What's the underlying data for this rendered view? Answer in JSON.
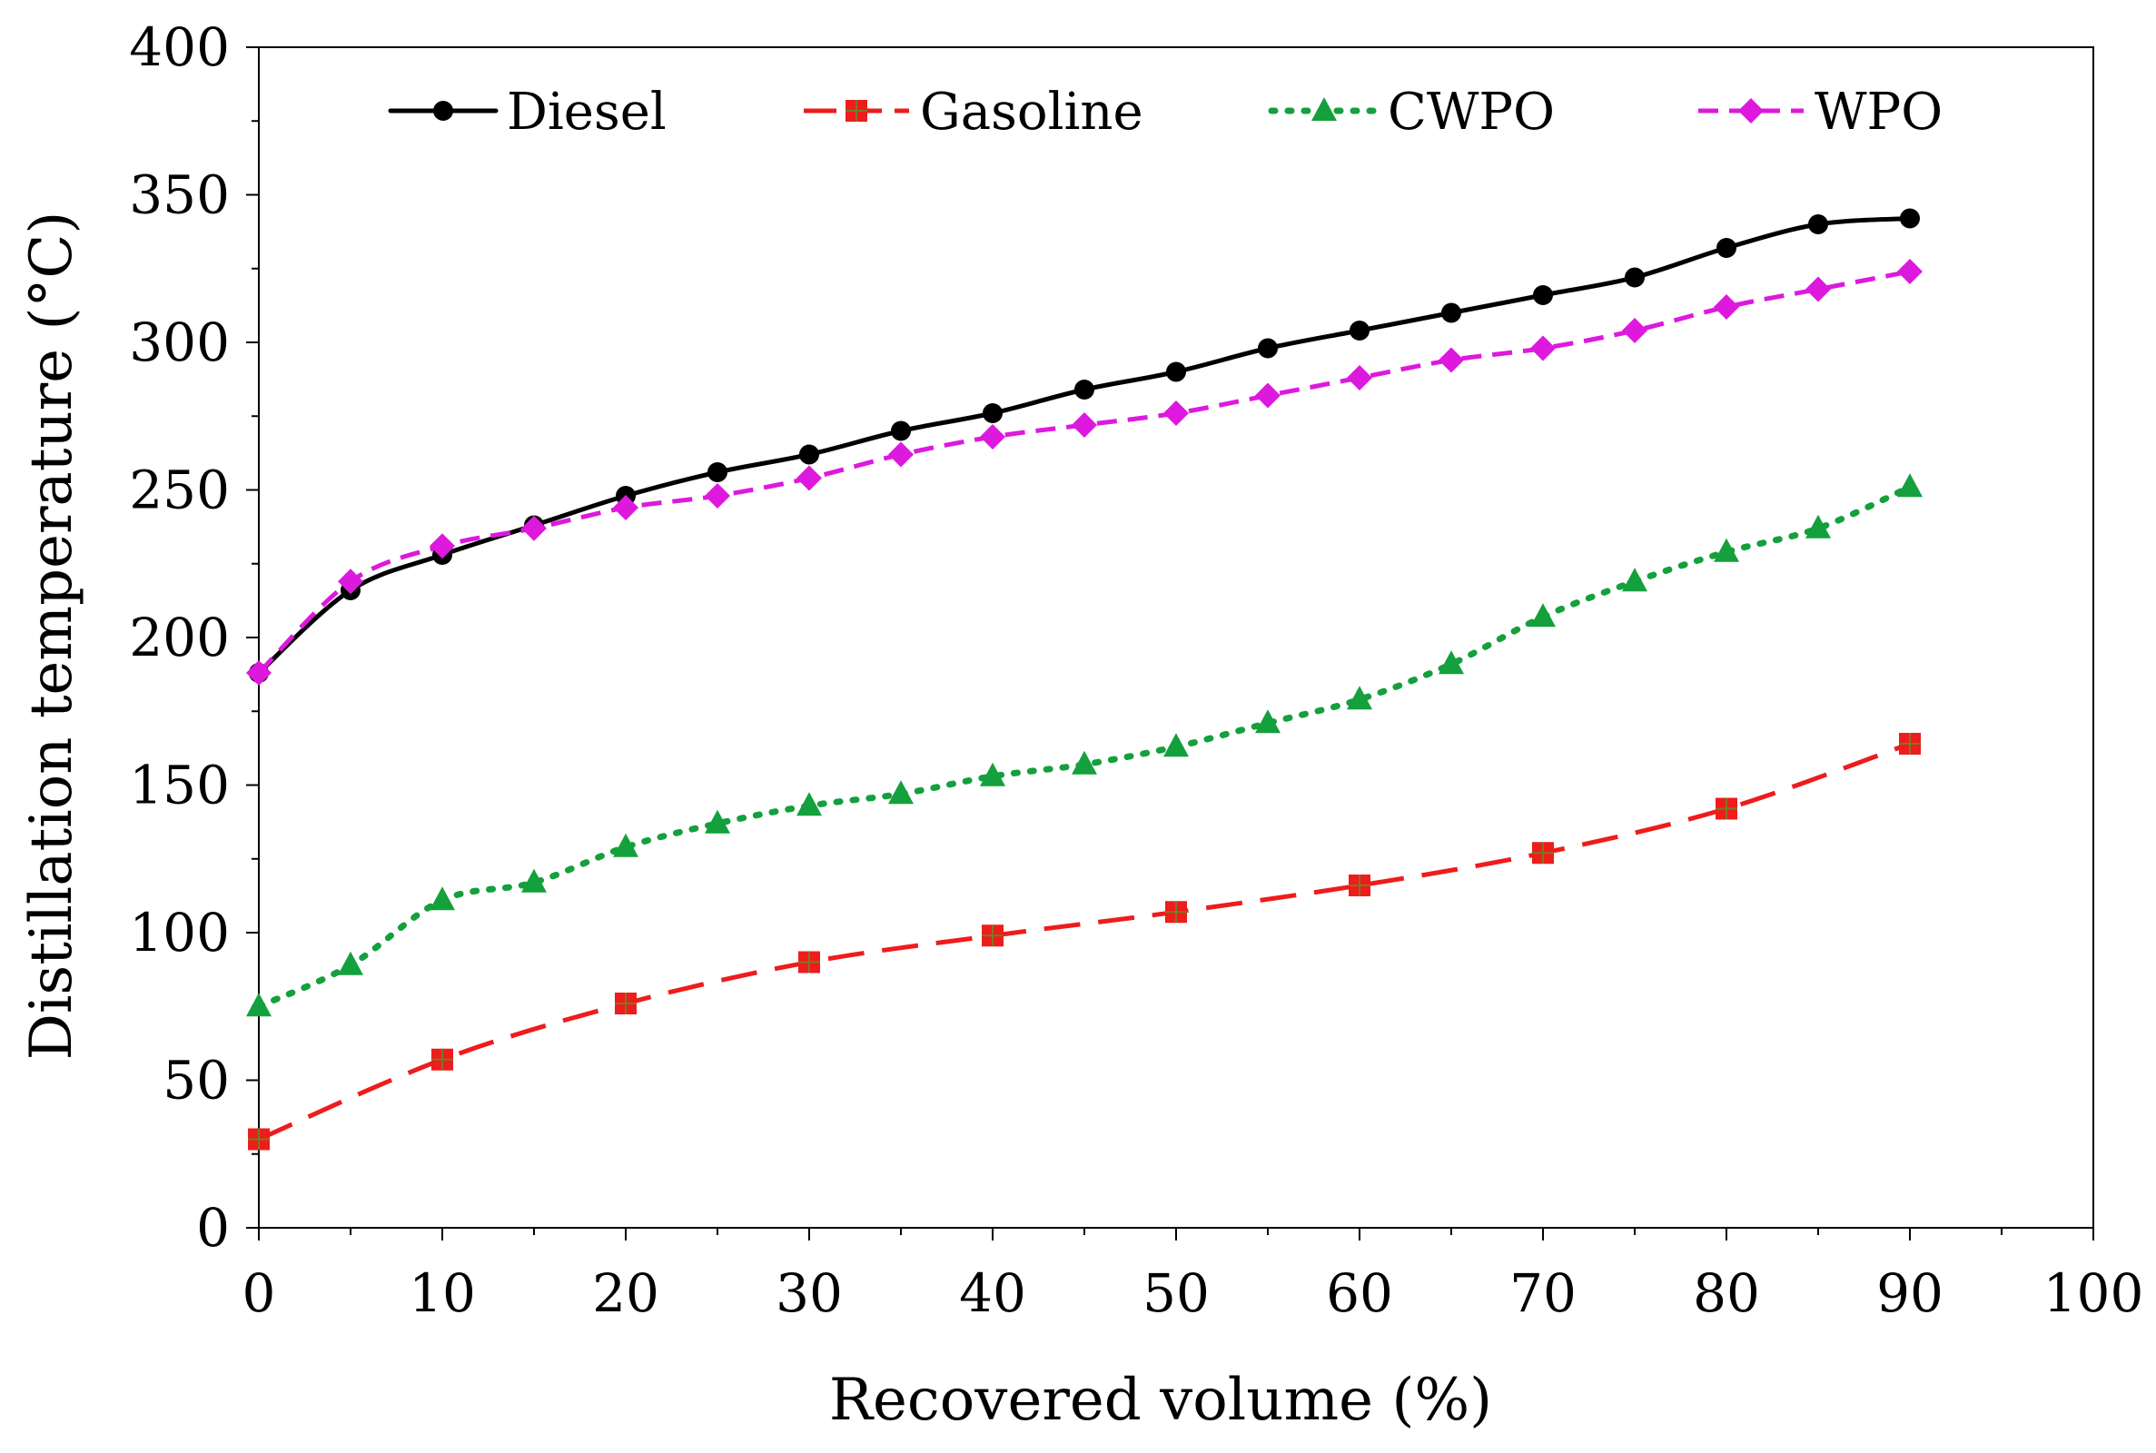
{
  "chart_data": {
    "type": "line",
    "title": "",
    "xlabel": "Recovered volume (%)",
    "ylabel": "Distillation temperature (°C)",
    "xlim": [
      0,
      100
    ],
    "ylim": [
      0,
      400
    ],
    "xticks": [
      0,
      10,
      20,
      30,
      40,
      50,
      60,
      70,
      80,
      90,
      100
    ],
    "yticks": [
      0,
      50,
      100,
      150,
      200,
      250,
      300,
      350,
      400
    ],
    "grid": false,
    "legend_position": "top",
    "series": [
      {
        "name": "Diesel",
        "color": "#000000",
        "dash": "solid",
        "marker": "circle",
        "x": [
          0,
          5,
          10,
          15,
          20,
          25,
          30,
          35,
          40,
          45,
          50,
          55,
          60,
          65,
          70,
          75,
          80,
          85,
          90
        ],
        "values": [
          188,
          216,
          228,
          238,
          248,
          256,
          262,
          270,
          276,
          284,
          290,
          298,
          304,
          310,
          316,
          322,
          332,
          340,
          342
        ]
      },
      {
        "name": "Gasoline",
        "color": "#ee1c1c",
        "dash": "longdash",
        "marker": "square",
        "x": [
          0,
          10,
          20,
          30,
          40,
          50,
          60,
          70,
          80,
          90
        ],
        "values": [
          30,
          57,
          76,
          90,
          99,
          107,
          116,
          127,
          142,
          164
        ]
      },
      {
        "name": "CWPO",
        "color": "#14a03c",
        "dash": "dotted",
        "marker": "triangle",
        "x": [
          0,
          5,
          10,
          15,
          20,
          25,
          30,
          35,
          40,
          45,
          50,
          55,
          60,
          65,
          70,
          75,
          80,
          85,
          90
        ],
        "values": [
          75,
          89,
          111,
          117,
          129,
          137,
          143,
          147,
          153,
          157,
          163,
          171,
          179,
          191,
          207,
          219,
          229,
          237,
          251
        ]
      },
      {
        "name": "WPO",
        "color": "#dd19dd",
        "dash": "dashed",
        "marker": "diamond",
        "x": [
          0,
          5,
          10,
          15,
          20,
          25,
          30,
          35,
          40,
          45,
          50,
          55,
          60,
          65,
          70,
          75,
          80,
          85,
          90
        ],
        "values": [
          188,
          219,
          231,
          237,
          244,
          248,
          254,
          262,
          268,
          272,
          276,
          282,
          288,
          294,
          298,
          304,
          312,
          318,
          324
        ]
      }
    ]
  }
}
